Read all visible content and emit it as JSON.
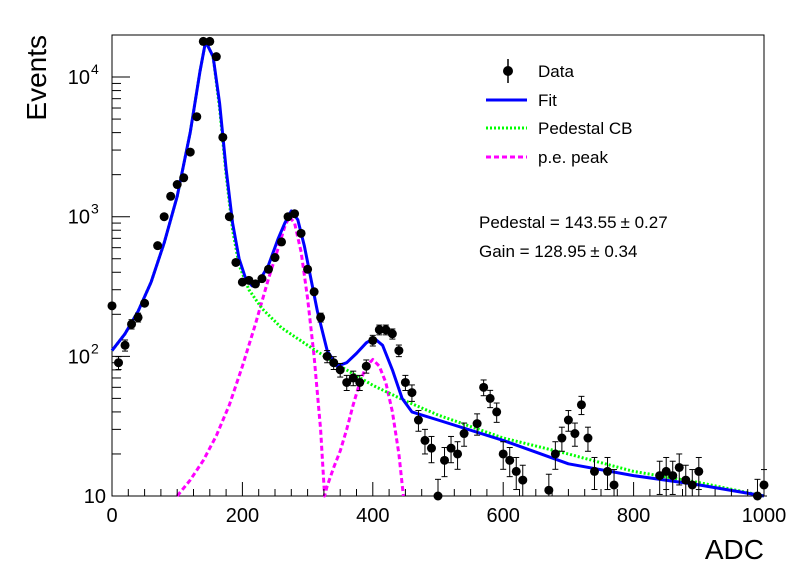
{
  "chart_data": {
    "type": "scatter",
    "xlabel": "ADC",
    "ylabel": "Events",
    "xlim": [
      0,
      1000
    ],
    "ylim": [
      10,
      20000
    ],
    "y_scale": "log",
    "x_ticks": [
      0,
      200,
      400,
      600,
      800,
      1000
    ],
    "x_tick_labels": [
      "0",
      "200",
      "400",
      "600",
      "800",
      "1000"
    ],
    "y_ticks": [
      10,
      100,
      1000,
      10000
    ],
    "y_tick_labels": [
      "10",
      "10",
      "10",
      "10"
    ],
    "y_tick_exponents": [
      "",
      "2",
      "3",
      "4"
    ],
    "grid": false,
    "legend_position": "top-right",
    "legend": [
      {
        "label": "Data",
        "style": "marker",
        "color": "#000000"
      },
      {
        "label": "Fit",
        "style": "solid",
        "color": "#0000ff"
      },
      {
        "label": "Pedestal CB",
        "style": "dotted",
        "color": "#00ff00"
      },
      {
        "label": "p.e. peak",
        "style": "dashed",
        "color": "#ff00ff"
      }
    ],
    "annotations": [
      {
        "text": "Pedestal = 143.55",
        "pm": "± 0.27"
      },
      {
        "text": "Gain = 128.95",
        "pm": "± 0.34"
      }
    ],
    "series": [
      {
        "name": "Data",
        "style": "marker",
        "color": "#000000",
        "points": [
          [
            0,
            230
          ],
          [
            10,
            90
          ],
          [
            20,
            120
          ],
          [
            30,
            170
          ],
          [
            40,
            190
          ],
          [
            50,
            240
          ],
          [
            70,
            620
          ],
          [
            80,
            1000
          ],
          [
            90,
            1400
          ],
          [
            100,
            1700
          ],
          [
            110,
            1900
          ],
          [
            120,
            2900
          ],
          [
            130,
            5200
          ],
          [
            140,
            18000
          ],
          [
            150,
            18000
          ],
          [
            160,
            14000
          ],
          [
            170,
            3700
          ],
          [
            180,
            1000
          ],
          [
            190,
            470
          ],
          [
            200,
            340
          ],
          [
            210,
            350
          ],
          [
            220,
            330
          ],
          [
            230,
            360
          ],
          [
            240,
            420
          ],
          [
            250,
            510
          ],
          [
            260,
            660
          ],
          [
            270,
            1000
          ],
          [
            280,
            1050
          ],
          [
            290,
            760
          ],
          [
            300,
            420
          ],
          [
            310,
            290
          ],
          [
            320,
            190
          ],
          [
            330,
            100
          ],
          [
            340,
            90
          ],
          [
            350,
            80
          ],
          [
            360,
            65
          ],
          [
            370,
            70
          ],
          [
            380,
            65
          ],
          [
            390,
            85
          ],
          [
            400,
            130
          ],
          [
            410,
            155
          ],
          [
            420,
            155
          ],
          [
            430,
            145
          ],
          [
            440,
            110
          ],
          [
            450,
            65
          ],
          [
            460,
            55
          ],
          [
            470,
            35
          ],
          [
            480,
            25
          ],
          [
            490,
            22
          ],
          [
            500,
            10
          ],
          [
            510,
            18
          ],
          [
            520,
            22
          ],
          [
            530,
            20
          ],
          [
            540,
            28
          ],
          [
            560,
            33
          ],
          [
            570,
            60
          ],
          [
            580,
            50
          ],
          [
            590,
            40
          ],
          [
            600,
            20
          ],
          [
            610,
            18
          ],
          [
            620,
            15
          ],
          [
            630,
            13
          ],
          [
            670,
            11
          ],
          [
            680,
            20
          ],
          [
            690,
            26
          ],
          [
            700,
            35
          ],
          [
            710,
            28
          ],
          [
            720,
            45
          ],
          [
            730,
            26
          ],
          [
            740,
            15
          ],
          [
            760,
            15
          ],
          [
            770,
            12
          ],
          [
            840,
            14
          ],
          [
            850,
            15
          ],
          [
            860,
            14
          ],
          [
            870,
            16
          ],
          [
            880,
            13
          ],
          [
            890,
            12
          ],
          [
            900,
            15
          ],
          [
            990,
            10
          ],
          [
            1000,
            12
          ]
        ]
      },
      {
        "name": "Fit",
        "style": "solid",
        "color": "#0000ff",
        "points": [
          [
            0,
            110
          ],
          [
            20,
            145
          ],
          [
            40,
            210
          ],
          [
            60,
            340
          ],
          [
            80,
            650
          ],
          [
            100,
            1400
          ],
          [
            120,
            4000
          ],
          [
            135,
            11000
          ],
          [
            143.5,
            18000
          ],
          [
            155,
            14000
          ],
          [
            165,
            6500
          ],
          [
            175,
            2200
          ],
          [
            185,
            900
          ],
          [
            195,
            500
          ],
          [
            205,
            360
          ],
          [
            215,
            320
          ],
          [
            225,
            340
          ],
          [
            240,
            450
          ],
          [
            255,
            700
          ],
          [
            265,
            900
          ],
          [
            275,
            1100
          ],
          [
            285,
            950
          ],
          [
            295,
            620
          ],
          [
            305,
            360
          ],
          [
            315,
            210
          ],
          [
            330,
            110
          ],
          [
            345,
            85
          ],
          [
            360,
            90
          ],
          [
            375,
            105
          ],
          [
            390,
            125
          ],
          [
            402,
            135
          ],
          [
            415,
            120
          ],
          [
            430,
            80
          ],
          [
            445,
            50
          ],
          [
            460,
            40
          ],
          [
            500,
            35
          ],
          [
            600,
            25
          ],
          [
            700,
            17
          ],
          [
            800,
            14
          ],
          [
            900,
            12
          ],
          [
            1000,
            10
          ]
        ]
      },
      {
        "name": "Pedestal CB",
        "style": "dotted",
        "color": "#00ff00",
        "points": [
          [
            0,
            110
          ],
          [
            20,
            145
          ],
          [
            40,
            210
          ],
          [
            60,
            340
          ],
          [
            80,
            650
          ],
          [
            100,
            1400
          ],
          [
            120,
            4000
          ],
          [
            135,
            11000
          ],
          [
            143.5,
            18000
          ],
          [
            155,
            14000
          ],
          [
            165,
            6000
          ],
          [
            175,
            2000
          ],
          [
            185,
            800
          ],
          [
            195,
            450
          ],
          [
            210,
            300
          ],
          [
            230,
            220
          ],
          [
            260,
            160
          ],
          [
            300,
            120
          ],
          [
            350,
            85
          ],
          [
            400,
            62
          ],
          [
            450,
            48
          ],
          [
            500,
            38
          ],
          [
            600,
            26
          ],
          [
            700,
            20
          ],
          [
            800,
            15
          ],
          [
            900,
            12.5
          ],
          [
            1000,
            10
          ]
        ]
      },
      {
        "name": "p.e. peak",
        "style": "dashed",
        "color": "#ff00ff",
        "points": [
          [
            100,
            10
          ],
          [
            120,
            13
          ],
          [
            140,
            18
          ],
          [
            160,
            27
          ],
          [
            180,
            45
          ],
          [
            200,
            85
          ],
          [
            220,
            170
          ],
          [
            240,
            360
          ],
          [
            255,
            600
          ],
          [
            265,
            850
          ],
          [
            272,
            1000
          ],
          [
            280,
            900
          ],
          [
            290,
            560
          ],
          [
            300,
            260
          ],
          [
            310,
            100
          ],
          [
            320,
            30
          ],
          [
            326,
            10
          ],
          [
            330,
            11.8
          ],
          [
            340,
            16
          ],
          [
            350,
            21
          ],
          [
            360,
            30
          ],
          [
            370,
            45
          ],
          [
            380,
            65
          ],
          [
            390,
            85
          ],
          [
            400,
            95
          ],
          [
            410,
            85
          ],
          [
            420,
            65
          ],
          [
            430,
            40
          ],
          [
            440,
            20
          ],
          [
            447,
            10
          ]
        ]
      }
    ]
  }
}
